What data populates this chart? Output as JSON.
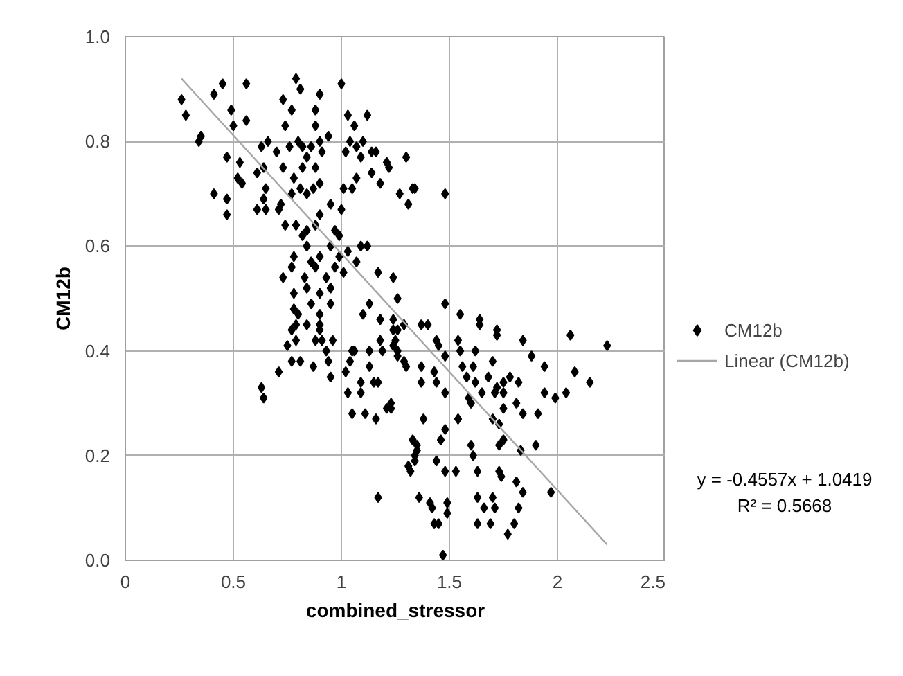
{
  "chart_data": {
    "type": "scatter",
    "xlabel": "combined_stressor",
    "ylabel": "CM12b",
    "xlim": [
      0,
      2.5
    ],
    "xticks": [
      0,
      0.5,
      1,
      1.5,
      2,
      2.5
    ],
    "ylim": [
      0,
      1.0
    ],
    "yticks": [
      {
        "value": 0,
        "label": "0.0"
      },
      {
        "value": 0.2,
        "label": "0.2"
      },
      {
        "value": 0.4,
        "label": "0.4"
      },
      {
        "value": 0.6,
        "label": "0.6"
      },
      {
        "value": 0.8,
        "label": "0.8"
      },
      {
        "value": 1.0,
        "label": "1.0"
      }
    ],
    "grid": true,
    "legend": "right",
    "annotations": [
      "y = -0.4557x + 1.0419",
      "R² = 0.5668"
    ],
    "series": [
      {
        "name": "CM12b",
        "color": "#000000",
        "marker": "diamond",
        "x": [
          0.26,
          0.28,
          0.41,
          0.45,
          0.56,
          0.49,
          0.35,
          0.34,
          0.56,
          0.5,
          0.47,
          0.53,
          0.52,
          0.41,
          0.47,
          0.47,
          0.54,
          0.79,
          0.81,
          0.73,
          0.77,
          0.74,
          0.9,
          0.88,
          0.88,
          1.0,
          1.03,
          1.12,
          1.06,
          0.66,
          0.63,
          0.64,
          0.61,
          0.65,
          0.64,
          0.61,
          0.65,
          0.71,
          0.72,
          0.7,
          0.76,
          0.8,
          0.82,
          0.84,
          0.86,
          0.9,
          0.94,
          0.91,
          0.88,
          0.82,
          0.78,
          0.81,
          0.84,
          0.87,
          0.9,
          0.77,
          0.73,
          1.04,
          1.1,
          1.07,
          1.02,
          1.09,
          1.14,
          1.16,
          1.21,
          1.22,
          1.14,
          1.18,
          1.07,
          1.3,
          1.33,
          1.27,
          1.31,
          1.34,
          1.48,
          1.01,
          1.05,
          0.9,
          0.88,
          0.84,
          0.82,
          0.95,
          1.0,
          0.74,
          0.79,
          0.97,
          0.99,
          0.78,
          0.77,
          0.84,
          0.86,
          0.9,
          0.95,
          0.99,
          1.03,
          1.09,
          1.12,
          0.73,
          0.83,
          0.88,
          0.93,
          0.97,
          1.01,
          1.07,
          1.17,
          1.24,
          1.26,
          0.78,
          0.84,
          0.9,
          0.95,
          0.78,
          0.8,
          0.86,
          0.9,
          0.95,
          0.79,
          0.84,
          0.9,
          1.1,
          1.13,
          1.18,
          1.24,
          1.29,
          1.48,
          1.55,
          1.64,
          1.72,
          0.77,
          0.79,
          0.75,
          0.81,
          0.77,
          0.9,
          0.88,
          0.91,
          0.96,
          0.93,
          0.87,
          0.94,
          0.95,
          0.71,
          0.63,
          0.64,
          1.05,
          1.06,
          1.02,
          1.04,
          1.03,
          1.09,
          1.09,
          1.13,
          1.15,
          1.17,
          1.05,
          1.11,
          1.16,
          1.21,
          1.23,
          1.13,
          1.18,
          1.19,
          1.24,
          1.26,
          1.29,
          1.18,
          1.24,
          1.17,
          1.33,
          1.35,
          1.31,
          1.34,
          1.29,
          1.37,
          1.4,
          1.26,
          1.25,
          1.26,
          1.3,
          1.37,
          1.37,
          1.43,
          1.44,
          1.48,
          1.44,
          1.45,
          1.48,
          1.64,
          1.72,
          1.54,
          1.55,
          1.62,
          1.56,
          1.61,
          1.7,
          1.58,
          1.62,
          1.68,
          1.72,
          1.75,
          1.78,
          1.82,
          1.71,
          1.75,
          1.59,
          1.6,
          1.65,
          1.75,
          1.81,
          1.84,
          1.91,
          1.84,
          1.88,
          1.94,
          2.08,
          2.15,
          1.94,
          1.99,
          2.04,
          2.06,
          2.23,
          1.23,
          1.38,
          1.54,
          1.48,
          1.46,
          1.35,
          1.34,
          1.32,
          1.44,
          1.48,
          1.53,
          1.6,
          1.61,
          1.63,
          1.73,
          1.75,
          1.7,
          1.73,
          1.83,
          1.9,
          1.73,
          1.81,
          1.84,
          1.97,
          1.74,
          1.63,
          1.66,
          1.7,
          1.71,
          1.82,
          1.36,
          1.41,
          1.42,
          1.49,
          1.49,
          1.43,
          1.45,
          1.63,
          1.69,
          1.8,
          1.77,
          1.47
        ],
        "values": [
          0.88,
          0.85,
          0.89,
          0.91,
          0.91,
          0.86,
          0.81,
          0.8,
          0.84,
          0.83,
          0.77,
          0.76,
          0.73,
          0.7,
          0.69,
          0.66,
          0.72,
          0.92,
          0.9,
          0.88,
          0.86,
          0.83,
          0.89,
          0.86,
          0.83,
          0.91,
          0.85,
          0.85,
          0.83,
          0.8,
          0.79,
          0.75,
          0.74,
          0.71,
          0.69,
          0.67,
          0.67,
          0.67,
          0.68,
          0.78,
          0.79,
          0.8,
          0.79,
          0.77,
          0.79,
          0.8,
          0.81,
          0.78,
          0.75,
          0.75,
          0.73,
          0.71,
          0.7,
          0.71,
          0.72,
          0.7,
          0.75,
          0.8,
          0.8,
          0.79,
          0.78,
          0.77,
          0.78,
          0.78,
          0.76,
          0.75,
          0.74,
          0.72,
          0.73,
          0.77,
          0.71,
          0.7,
          0.68,
          0.71,
          0.7,
          0.71,
          0.71,
          0.66,
          0.64,
          0.63,
          0.62,
          0.68,
          0.67,
          0.64,
          0.64,
          0.63,
          0.62,
          0.58,
          0.56,
          0.6,
          0.57,
          0.58,
          0.6,
          0.58,
          0.59,
          0.6,
          0.6,
          0.54,
          0.54,
          0.56,
          0.54,
          0.56,
          0.55,
          0.57,
          0.55,
          0.54,
          0.5,
          0.51,
          0.52,
          0.51,
          0.52,
          0.48,
          0.47,
          0.49,
          0.47,
          0.49,
          0.45,
          0.45,
          0.44,
          0.47,
          0.49,
          0.46,
          0.46,
          0.45,
          0.49,
          0.47,
          0.46,
          0.44,
          0.44,
          0.42,
          0.41,
          0.38,
          0.38,
          0.45,
          0.42,
          0.42,
          0.42,
          0.4,
          0.37,
          0.38,
          0.35,
          0.36,
          0.33,
          0.31,
          0.4,
          0.4,
          0.36,
          0.38,
          0.32,
          0.32,
          0.34,
          0.37,
          0.34,
          0.34,
          0.28,
          0.28,
          0.27,
          0.29,
          0.29,
          0.4,
          0.42,
          0.4,
          0.41,
          0.4,
          0.38,
          0.46,
          0.44,
          0.12,
          0.23,
          0.21,
          0.18,
          0.19,
          0.45,
          0.45,
          0.45,
          0.44,
          0.42,
          0.39,
          0.37,
          0.37,
          0.34,
          0.36,
          0.34,
          0.32,
          0.42,
          0.41,
          0.39,
          0.45,
          0.43,
          0.42,
          0.4,
          0.4,
          0.37,
          0.37,
          0.38,
          0.35,
          0.34,
          0.35,
          0.33,
          0.34,
          0.35,
          0.34,
          0.32,
          0.32,
          0.31,
          0.3,
          0.32,
          0.29,
          0.3,
          0.28,
          0.28,
          0.42,
          0.39,
          0.37,
          0.36,
          0.34,
          0.32,
          0.31,
          0.32,
          0.43,
          0.41,
          0.3,
          0.27,
          0.27,
          0.25,
          0.23,
          0.22,
          0.2,
          0.17,
          0.19,
          0.17,
          0.17,
          0.22,
          0.2,
          0.17,
          0.22,
          0.23,
          0.27,
          0.26,
          0.21,
          0.22,
          0.17,
          0.15,
          0.13,
          0.13,
          0.16,
          0.12,
          0.1,
          0.12,
          0.1,
          0.1,
          0.12,
          0.11,
          0.1,
          0.11,
          0.09,
          0.07,
          0.07,
          0.07,
          0.07,
          0.07,
          0.05,
          0.01
        ]
      },
      {
        "name": "Linear (CM12b)",
        "color": "#a6a6a6",
        "type": "line",
        "x": [
          0.26,
          2.23
        ],
        "values": [
          0.92,
          0.03
        ]
      }
    ]
  }
}
